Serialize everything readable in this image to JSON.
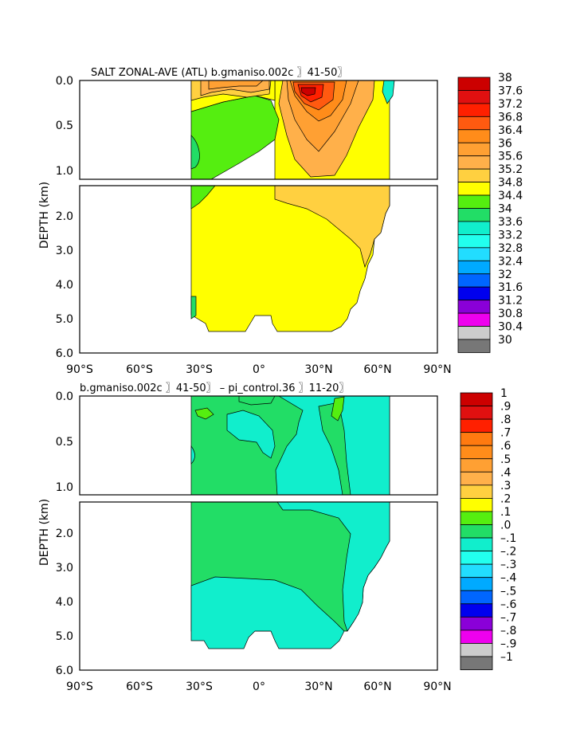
{
  "chart_data": [
    {
      "type": "contour",
      "title": "SALT ZONAL-AVE (ATL) b.gmaniso.002c 〗41-50〗",
      "ylabel": "DEPTH (km)",
      "xlim": [
        -90,
        90
      ],
      "ylim": [
        0,
        6
      ],
      "xticks": [
        -90,
        -60,
        -30,
        0,
        30,
        60,
        90
      ],
      "xtick_labels": [
        "90°S",
        "60°S",
        "30°S",
        "0°",
        "30°N",
        "60°N",
        "90°N"
      ],
      "yticks_upper": [
        0.0,
        0.5,
        1.0
      ],
      "ytick_labels_upper": [
        "0.0",
        "0.5",
        "1.0"
      ],
      "yticks_lower": [
        2.0,
        3.0,
        4.0,
        5.0,
        6.0
      ],
      "ytick_labels_lower": [
        "2.0",
        "3.0",
        "4.0",
        "5.0",
        "6.0"
      ],
      "colorbar": {
        "labels": [
          "38",
          "37.6",
          "37.2",
          "36.8",
          "36.4",
          "36",
          "35.6",
          "35.2",
          "34.8",
          "34.4",
          "34",
          "33.6",
          "33.2",
          "32.8",
          "32.4",
          "32",
          "31.6",
          "31.2",
          "30.8",
          "30.4",
          "30"
        ],
        "colors": [
          "#cc0000",
          "#e01010",
          "#ff2000",
          "#ff5a10",
          "#ff8c1a",
          "#ffa033",
          "#ffb04a",
          "#ffd040",
          "#ffff00",
          "#55ee10",
          "#22dd66",
          "#11eecc",
          "#22ffee",
          "#22ddff",
          "#00aaff",
          "#0066ff",
          "#0000ee",
          "#8a00d8",
          "#ee00ee",
          "#cccccc"
        ]
      }
    },
    {
      "type": "contour",
      "title": "b.gmaniso.002c 〗41-50〗 – pi_control.36 〗11-20〗",
      "ylabel": "DEPTH (km)",
      "xlim": [
        -90,
        90
      ],
      "ylim": [
        0,
        6
      ],
      "xticks": [
        -90,
        -60,
        -30,
        0,
        30,
        60,
        90
      ],
      "xtick_labels": [
        "90°S",
        "60°S",
        "30°S",
        "0°",
        "30°N",
        "60°N",
        "90°N"
      ],
      "yticks_upper": [
        0.0,
        0.5,
        1.0
      ],
      "ytick_labels_upper": [
        "0.0",
        "0.5",
        "1.0"
      ],
      "yticks_lower": [
        2.0,
        3.0,
        4.0,
        5.0,
        6.0
      ],
      "ytick_labels_lower": [
        "2.0",
        "3.0",
        "4.0",
        "5.0",
        "6.0"
      ],
      "colorbar": {
        "labels": [
          "1",
          ".9",
          ".8",
          ".7",
          ".6",
          ".5",
          ".4",
          ".3",
          ".2",
          ".1",
          ".0",
          "–.1",
          "–.2",
          "–.3",
          "–.4",
          "–.5",
          "–.6",
          "–.7",
          "–.8",
          "–.9",
          "–1"
        ],
        "colors": [
          "#cc0000",
          "#e01010",
          "#ff2000",
          "#ff7a10",
          "#ff8c1a",
          "#ffa033",
          "#ffb04a",
          "#ffd040",
          "#ffff00",
          "#55ee10",
          "#22dd66",
          "#11eecc",
          "#22ffee",
          "#22ddff",
          "#00aaff",
          "#0066ff",
          "#0000ee",
          "#8a00d8",
          "#ee00ee",
          "#cccccc"
        ]
      }
    }
  ]
}
